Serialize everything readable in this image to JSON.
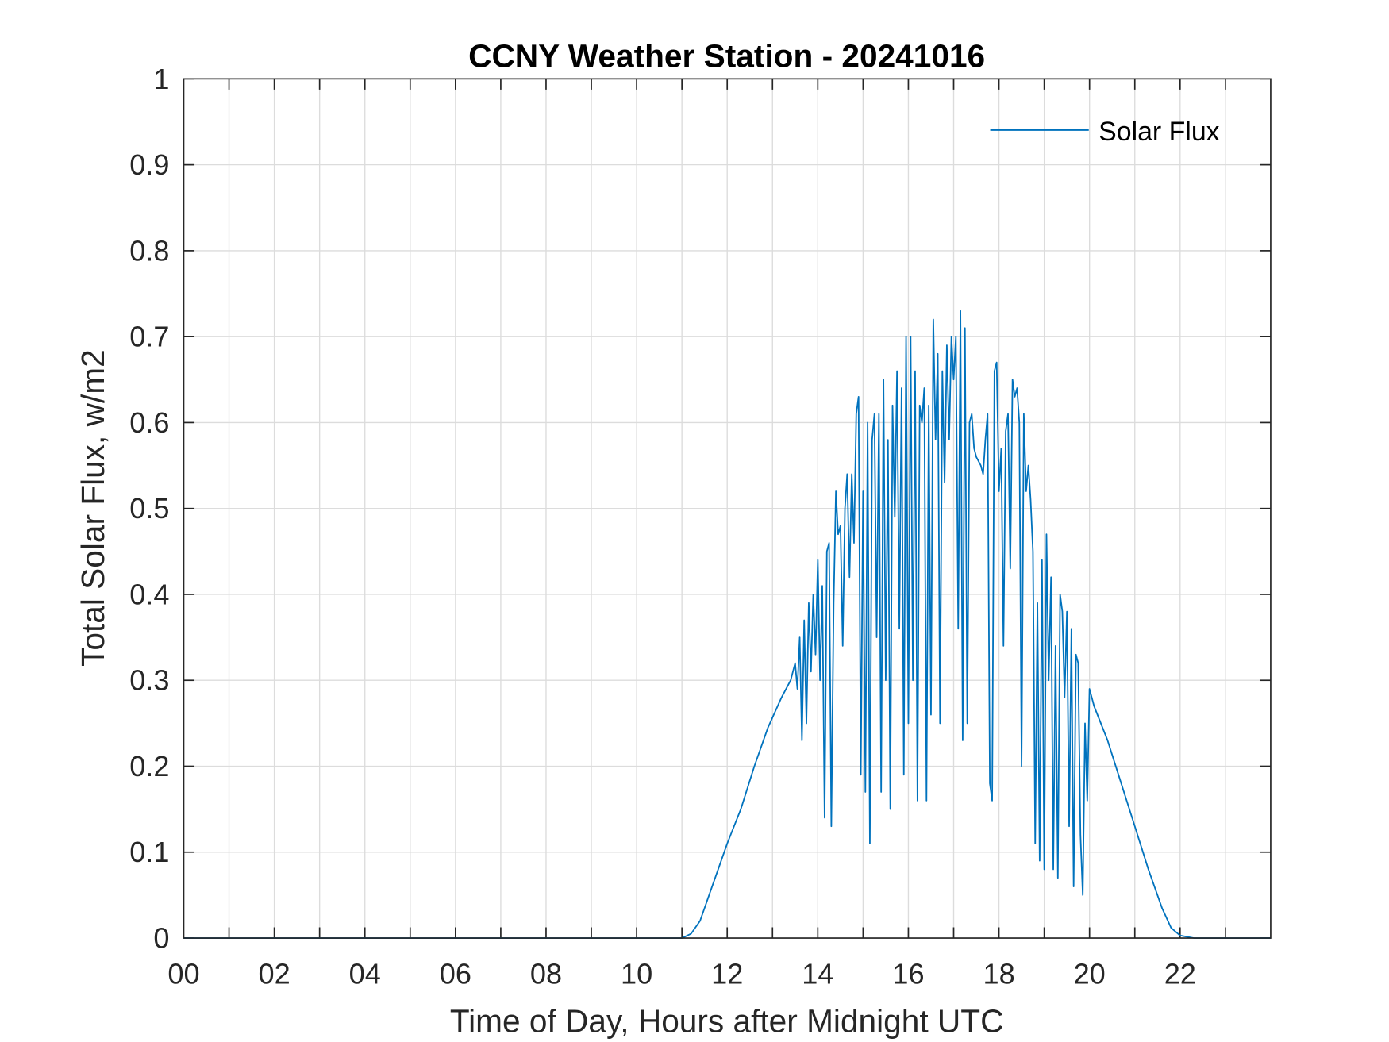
{
  "chart_data": {
    "type": "line",
    "title": "CCNY Weather Station - 20241016",
    "xlabel": "Time of Day, Hours after Midnight UTC",
    "ylabel": "Total Solar Flux, w/m2",
    "xlim": [
      0,
      24
    ],
    "ylim": [
      0,
      1
    ],
    "grid": true,
    "legend_placement": "top-right",
    "x_ticks": [
      0,
      2,
      4,
      6,
      8,
      10,
      12,
      14,
      16,
      18,
      20,
      22
    ],
    "x_tick_labels": [
      "00",
      "02",
      "04",
      "06",
      "08",
      "10",
      "12",
      "14",
      "16",
      "18",
      "20",
      "22"
    ],
    "x_minor_grid_step": 1,
    "y_ticks": [
      0,
      0.1,
      0.2,
      0.3,
      0.4,
      0.5,
      0.6,
      0.7,
      0.8,
      0.9,
      1
    ],
    "y_tick_labels": [
      "0",
      "0.1",
      "0.2",
      "0.3",
      "0.4",
      "0.5",
      "0.6",
      "0.7",
      "0.8",
      "0.9",
      "1"
    ],
    "series": [
      {
        "name": "Solar Flux",
        "color": "#0072BD",
        "points": [
          [
            0,
            0
          ],
          [
            11.0,
            0
          ],
          [
            11.2,
            0.005
          ],
          [
            11.4,
            0.02
          ],
          [
            11.6,
            0.05
          ],
          [
            11.8,
            0.08
          ],
          [
            12.0,
            0.11
          ],
          [
            12.3,
            0.15
          ],
          [
            12.6,
            0.2
          ],
          [
            12.9,
            0.245
          ],
          [
            13.2,
            0.28
          ],
          [
            13.4,
            0.3
          ],
          [
            13.5,
            0.32
          ],
          [
            13.55,
            0.29
          ],
          [
            13.6,
            0.35
          ],
          [
            13.65,
            0.23
          ],
          [
            13.7,
            0.37
          ],
          [
            13.75,
            0.25
          ],
          [
            13.8,
            0.39
          ],
          [
            13.85,
            0.31
          ],
          [
            13.9,
            0.4
          ],
          [
            13.95,
            0.33
          ],
          [
            14.0,
            0.44
          ],
          [
            14.05,
            0.3
          ],
          [
            14.1,
            0.41
          ],
          [
            14.15,
            0.14
          ],
          [
            14.2,
            0.45
          ],
          [
            14.25,
            0.46
          ],
          [
            14.3,
            0.13
          ],
          [
            14.35,
            0.39
          ],
          [
            14.4,
            0.52
          ],
          [
            14.45,
            0.47
          ],
          [
            14.5,
            0.48
          ],
          [
            14.55,
            0.34
          ],
          [
            14.6,
            0.5
          ],
          [
            14.65,
            0.54
          ],
          [
            14.7,
            0.42
          ],
          [
            14.75,
            0.54
          ],
          [
            14.8,
            0.46
          ],
          [
            14.85,
            0.61
          ],
          [
            14.9,
            0.63
          ],
          [
            14.95,
            0.19
          ],
          [
            15.0,
            0.52
          ],
          [
            15.05,
            0.17
          ],
          [
            15.1,
            0.6
          ],
          [
            15.15,
            0.11
          ],
          [
            15.2,
            0.58
          ],
          [
            15.25,
            0.61
          ],
          [
            15.3,
            0.35
          ],
          [
            15.35,
            0.61
          ],
          [
            15.4,
            0.17
          ],
          [
            15.45,
            0.65
          ],
          [
            15.5,
            0.3
          ],
          [
            15.55,
            0.58
          ],
          [
            15.6,
            0.15
          ],
          [
            15.65,
            0.62
          ],
          [
            15.7,
            0.49
          ],
          [
            15.75,
            0.66
          ],
          [
            15.8,
            0.36
          ],
          [
            15.85,
            0.64
          ],
          [
            15.9,
            0.19
          ],
          [
            15.95,
            0.7
          ],
          [
            16.0,
            0.25
          ],
          [
            16.05,
            0.7
          ],
          [
            16.1,
            0.3
          ],
          [
            16.15,
            0.66
          ],
          [
            16.2,
            0.16
          ],
          [
            16.25,
            0.62
          ],
          [
            16.3,
            0.6
          ],
          [
            16.35,
            0.64
          ],
          [
            16.4,
            0.16
          ],
          [
            16.45,
            0.62
          ],
          [
            16.5,
            0.26
          ],
          [
            16.55,
            0.72
          ],
          [
            16.6,
            0.58
          ],
          [
            16.65,
            0.68
          ],
          [
            16.7,
            0.25
          ],
          [
            16.75,
            0.66
          ],
          [
            16.8,
            0.53
          ],
          [
            16.85,
            0.69
          ],
          [
            16.9,
            0.58
          ],
          [
            16.95,
            0.7
          ],
          [
            17.0,
            0.65
          ],
          [
            17.05,
            0.7
          ],
          [
            17.1,
            0.36
          ],
          [
            17.15,
            0.73
          ],
          [
            17.2,
            0.23
          ],
          [
            17.25,
            0.71
          ],
          [
            17.3,
            0.25
          ],
          [
            17.35,
            0.6
          ],
          [
            17.4,
            0.61
          ],
          [
            17.45,
            0.57
          ],
          [
            17.5,
            0.56
          ],
          [
            17.6,
            0.55
          ],
          [
            17.65,
            0.54
          ],
          [
            17.7,
            0.58
          ],
          [
            17.75,
            0.61
          ],
          [
            17.8,
            0.18
          ],
          [
            17.85,
            0.16
          ],
          [
            17.9,
            0.66
          ],
          [
            17.95,
            0.67
          ],
          [
            18.0,
            0.52
          ],
          [
            18.05,
            0.57
          ],
          [
            18.1,
            0.34
          ],
          [
            18.15,
            0.59
          ],
          [
            18.2,
            0.61
          ],
          [
            18.25,
            0.43
          ],
          [
            18.3,
            0.65
          ],
          [
            18.35,
            0.63
          ],
          [
            18.4,
            0.64
          ],
          [
            18.45,
            0.6
          ],
          [
            18.5,
            0.2
          ],
          [
            18.55,
            0.61
          ],
          [
            18.6,
            0.52
          ],
          [
            18.65,
            0.55
          ],
          [
            18.7,
            0.51
          ],
          [
            18.75,
            0.45
          ],
          [
            18.8,
            0.11
          ],
          [
            18.85,
            0.39
          ],
          [
            18.9,
            0.09
          ],
          [
            18.95,
            0.44
          ],
          [
            19.0,
            0.08
          ],
          [
            19.05,
            0.47
          ],
          [
            19.1,
            0.3
          ],
          [
            19.15,
            0.42
          ],
          [
            19.2,
            0.08
          ],
          [
            19.25,
            0.34
          ],
          [
            19.3,
            0.07
          ],
          [
            19.35,
            0.4
          ],
          [
            19.4,
            0.38
          ],
          [
            19.45,
            0.28
          ],
          [
            19.5,
            0.38
          ],
          [
            19.55,
            0.13
          ],
          [
            19.6,
            0.36
          ],
          [
            19.65,
            0.06
          ],
          [
            19.7,
            0.33
          ],
          [
            19.75,
            0.32
          ],
          [
            19.8,
            0.12
          ],
          [
            19.85,
            0.05
          ],
          [
            19.9,
            0.25
          ],
          [
            19.95,
            0.16
          ],
          [
            20.0,
            0.29
          ],
          [
            20.1,
            0.27
          ],
          [
            20.4,
            0.23
          ],
          [
            20.7,
            0.18
          ],
          [
            21.0,
            0.13
          ],
          [
            21.3,
            0.08
          ],
          [
            21.6,
            0.035
          ],
          [
            21.8,
            0.012
          ],
          [
            22.0,
            0.003
          ],
          [
            22.3,
            0
          ],
          [
            24,
            0
          ]
        ]
      }
    ]
  }
}
